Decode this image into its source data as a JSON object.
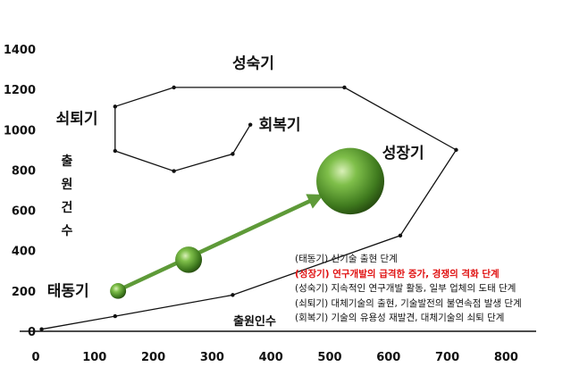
{
  "chart_data": {
    "type": "line",
    "title": "",
    "xlabel": "출원인수",
    "ylabel": "출원건수",
    "xlim": [
      0,
      900
    ],
    "ylim": [
      0,
      1400
    ],
    "xticks": [
      "0",
      "100",
      "200",
      "300",
      "400",
      "500",
      "600",
      "700",
      "800"
    ],
    "yticks": [
      "0",
      "200",
      "400",
      "600",
      "800",
      "1000",
      "1200",
      "1400"
    ],
    "series": [
      {
        "points": [
          {
            "x": 10,
            "y": 10
          },
          {
            "x": 135,
            "y": 75
          },
          {
            "x": 335,
            "y": 180
          },
          {
            "x": 620,
            "y": 475
          },
          {
            "x": 715,
            "y": 900
          },
          {
            "x": 525,
            "y": 1210
          },
          {
            "x": 235,
            "y": 1210
          },
          {
            "x": 135,
            "y": 1115
          },
          {
            "x": 135,
            "y": 895
          },
          {
            "x": 235,
            "y": 795
          },
          {
            "x": 335,
            "y": 880
          },
          {
            "x": 365,
            "y": 1025
          }
        ]
      }
    ],
    "bubbles": [
      {
        "x": 140,
        "y": 200,
        "size": "small"
      },
      {
        "x": 260,
        "y": 355,
        "size": "medium"
      },
      {
        "x": 535,
        "y": 745,
        "size": "large"
      }
    ],
    "arrow": {
      "from": {
        "x": 145,
        "y": 210
      },
      "to": {
        "x": 480,
        "y": 665
      }
    },
    "stage_labels": [
      {
        "text": "태동기",
        "x": 55,
        "y": 175
      },
      {
        "text": "성장기",
        "x": 625,
        "y": 860
      },
      {
        "text": "성숙기",
        "x": 370,
        "y": 1305
      },
      {
        "text": "쇠퇴기",
        "x": 70,
        "y": 1030
      },
      {
        "text": "회복기",
        "x": 415,
        "y": 1000
      }
    ],
    "legend": [
      {
        "text": "(태동기) 신기술 출현 단계",
        "highlight": false
      },
      {
        "text": "(성장기) 연구개발의 급격한 증가, 경쟁의 격화 단계",
        "highlight": true
      },
      {
        "text": "(성숙기) 지속적인 연구개발 활동, 일부 업체의 도태 단계",
        "highlight": false
      },
      {
        "text": "(쇠퇴기) 대체기술의 출현, 기술발전의 불연속점 발생 단계",
        "highlight": false
      },
      {
        "text": "(회복기) 기술의 유용성 재발견, 대체기술의 쇠퇴 단계",
        "highlight": false
      }
    ],
    "ylabel_chars": [
      "출",
      "원",
      "건",
      "수"
    ],
    "colors": {
      "line": "#111111",
      "arrow": "#5e9a38",
      "bubble": "#4f8f2a",
      "highlight": "#e01010"
    },
    "grid": false
  }
}
